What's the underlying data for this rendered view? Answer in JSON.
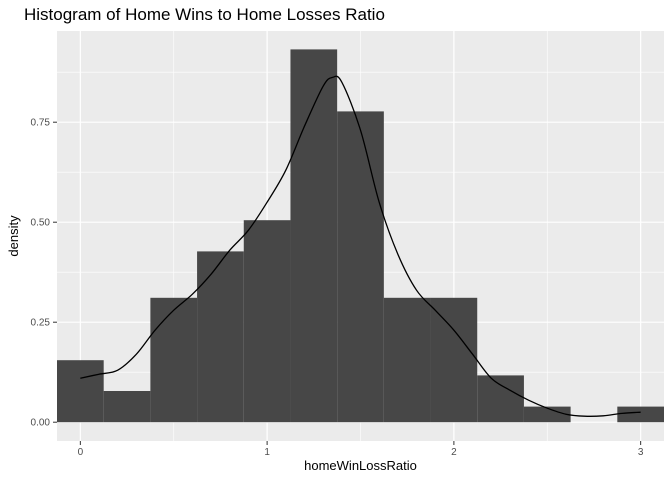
{
  "chart_data": {
    "type": "bar",
    "title": "Histogram of Home Wins to Home Losses Ratio",
    "xlabel": "homeWinLossRatio",
    "ylabel": "density",
    "xlim": [
      -0.125,
      3.125
    ],
    "ylim": [
      -0.047,
      0.978
    ],
    "x_ticks": [
      0,
      1,
      2,
      3
    ],
    "x_tick_labels": [
      "0",
      "1",
      "2",
      "3"
    ],
    "y_ticks": [
      0,
      0.25,
      0.5,
      0.75
    ],
    "y_tick_labels": [
      "0.00",
      "0.25",
      "0.50",
      "0.75"
    ],
    "grid": true,
    "bin_width": 0.25,
    "bins": [
      {
        "x0": -0.125,
        "x1": 0.125,
        "density": 0.155
      },
      {
        "x0": 0.125,
        "x1": 0.375,
        "density": 0.078
      },
      {
        "x0": 0.375,
        "x1": 0.625,
        "density": 0.311
      },
      {
        "x0": 0.625,
        "x1": 0.875,
        "density": 0.427
      },
      {
        "x0": 0.875,
        "x1": 1.125,
        "density": 0.505
      },
      {
        "x0": 1.125,
        "x1": 1.375,
        "density": 0.932
      },
      {
        "x0": 1.375,
        "x1": 1.625,
        "density": 0.777
      },
      {
        "x0": 1.625,
        "x1": 1.875,
        "density": 0.311
      },
      {
        "x0": 1.875,
        "x1": 2.125,
        "density": 0.311
      },
      {
        "x0": 2.125,
        "x1": 2.375,
        "density": 0.117
      },
      {
        "x0": 2.375,
        "x1": 2.625,
        "density": 0.039
      },
      {
        "x0": 2.625,
        "x1": 2.875,
        "density": 0.0
      },
      {
        "x0": 2.875,
        "x1": 3.125,
        "density": 0.039
      }
    ],
    "density_curve": {
      "x": [
        0.0,
        0.1,
        0.2,
        0.3,
        0.4,
        0.5,
        0.6,
        0.7,
        0.8,
        0.9,
        1.0,
        1.1,
        1.2,
        1.3,
        1.35,
        1.4,
        1.5,
        1.6,
        1.7,
        1.8,
        1.9,
        2.0,
        2.1,
        2.2,
        2.3,
        2.4,
        2.5,
        2.6,
        2.7,
        2.8,
        2.9,
        3.0
      ],
      "y": [
        0.11,
        0.12,
        0.13,
        0.17,
        0.23,
        0.28,
        0.32,
        0.37,
        0.43,
        0.48,
        0.55,
        0.63,
        0.74,
        0.84,
        0.862,
        0.85,
        0.73,
        0.55,
        0.42,
        0.33,
        0.28,
        0.23,
        0.17,
        0.11,
        0.08,
        0.055,
        0.035,
        0.02,
        0.015,
        0.016,
        0.022,
        0.025
      ]
    },
    "colors": {
      "panel_background": "#ebebeb",
      "bar_fill": "#474747",
      "grid_major": "#ffffff",
      "curve": "#000000",
      "tick": "#333333"
    }
  }
}
